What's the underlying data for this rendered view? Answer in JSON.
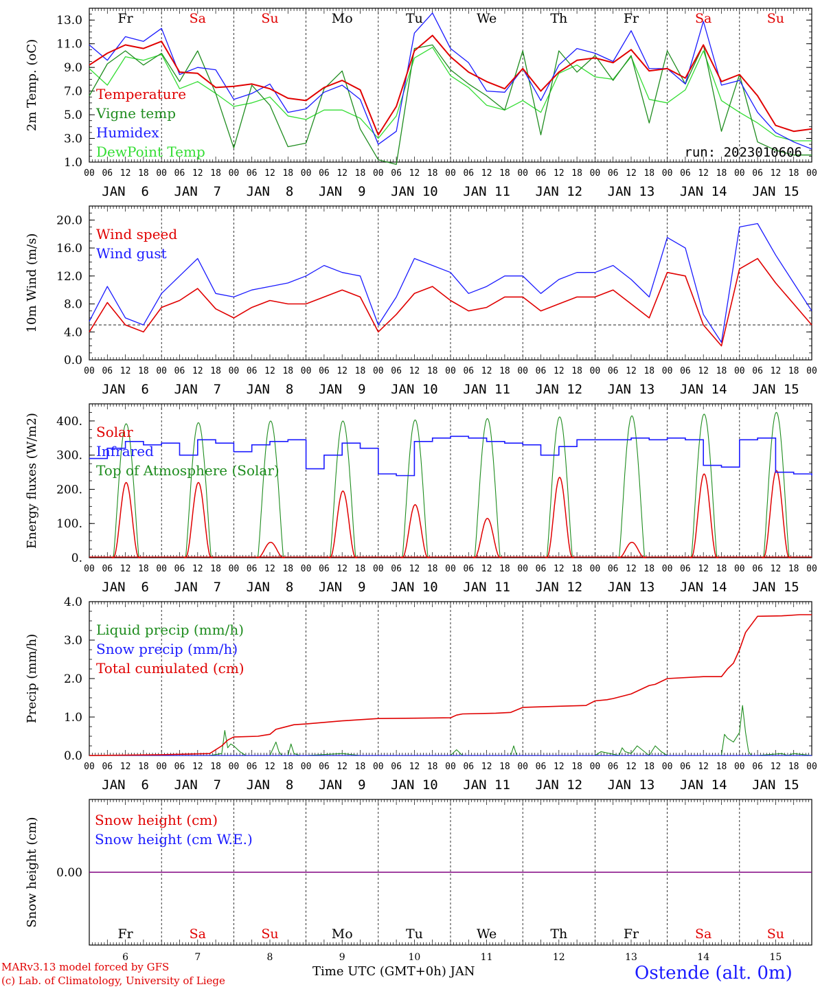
{
  "footer": {
    "credit_line1": "MARv3.13 model forced by GFS",
    "credit_line2": "(c) Lab. of Climatology, University of Liege",
    "x_axis_title": "Time UTC (GMT+0h) JAN",
    "station": "Ostende (alt. 0m)"
  },
  "colors": {
    "red": "#e00000",
    "blue": "#1a1aff",
    "green": "#1e8c1e",
    "lightgreen": "#33dd33",
    "purple": "#800080",
    "black": "#000000"
  },
  "axis": {
    "hour_ticks": [
      "00",
      "06",
      "12",
      "18"
    ],
    "final_tick": "00",
    "date_labels": [
      "JAN  6",
      "JAN  7",
      "JAN  8",
      "JAN  9",
      "JAN 10",
      "JAN 11",
      "JAN 12",
      "JAN 13",
      "JAN 14",
      "JAN 15"
    ],
    "day_names": [
      "Fr",
      "Sa",
      "Su",
      "Mo",
      "Tu",
      "We",
      "Th",
      "Fr",
      "Sa",
      "Su"
    ],
    "weekend": [
      false,
      true,
      true,
      false,
      false,
      false,
      false,
      false,
      true,
      true
    ],
    "day_numbers": [
      "6",
      "7",
      "8",
      "9",
      "10",
      "11",
      "12",
      "13",
      "14",
      "15"
    ]
  },
  "chart_data": [
    {
      "id": "temp",
      "type": "line",
      "ylabel": "2m Temp. (oC)",
      "ylim": [
        1,
        14
      ],
      "yticks": [
        1,
        3,
        5,
        7,
        9,
        11,
        13
      ],
      "ytick_labels": [
        "1.0",
        "3.0",
        "5.0",
        "7.0",
        "9.0",
        "11.0",
        "13.0"
      ],
      "annotation": "run: 2023010606",
      "x_hours": [
        0,
        6,
        12,
        18,
        24,
        30,
        36,
        42,
        48,
        54,
        60,
        66,
        72,
        78,
        84,
        90,
        96,
        102,
        108,
        114,
        120,
        126,
        132,
        138,
        144,
        150,
        156,
        162,
        168,
        174,
        180,
        186,
        192,
        198,
        204,
        210,
        216,
        222,
        228,
        234,
        240
      ],
      "series": [
        {
          "name": "Temperature",
          "color": "red",
          "values": [
            9.2,
            10.2,
            10.9,
            10.6,
            11.2,
            8.6,
            8.5,
            7.3,
            7.4,
            7.6,
            7.2,
            6.4,
            6.2,
            7.3,
            7.9,
            7.1,
            3.3,
            5.7,
            10.4,
            11.7,
            9.9,
            8.6,
            7.8,
            7.2,
            8.9,
            7.0,
            8.6,
            9.6,
            9.8,
            9.4,
            10.5,
            8.7,
            8.9,
            8.1,
            10.9,
            7.8,
            8.4,
            6.6,
            4.1,
            3.6,
            3.8
          ]
        },
        {
          "name": "Vigne temp",
          "color": "green",
          "values": [
            6.6,
            9.3,
            10.4,
            9.2,
            10.2,
            7.8,
            10.4,
            6.8,
            2.2,
            7.5,
            5.8,
            2.3,
            2.6,
            7.2,
            8.7,
            3.8,
            1.2,
            0.8,
            10.6,
            10.9,
            8.8,
            7.6,
            6.6,
            5.4,
            10.4,
            3.3,
            10.4,
            8.6,
            10.0,
            7.9,
            10.0,
            4.3,
            10.4,
            7.6,
            10.9,
            3.6,
            8.4,
            2.7,
            2.0,
            1.6,
            1.6
          ]
        },
        {
          "name": "Humidex",
          "color": "blue",
          "values": [
            10.9,
            9.6,
            11.6,
            11.2,
            12.3,
            8.4,
            9.0,
            8.8,
            6.3,
            6.8,
            7.6,
            5.2,
            5.5,
            6.9,
            7.5,
            6.3,
            2.5,
            3.6,
            11.9,
            13.6,
            10.6,
            9.4,
            7.0,
            6.9,
            8.9,
            6.2,
            9.2,
            10.6,
            10.2,
            9.5,
            12.1,
            8.9,
            8.9,
            7.6,
            12.9,
            7.5,
            7.9,
            5.2,
            3.5,
            2.7,
            2.1
          ]
        },
        {
          "name": "DewPoint Temp",
          "color": "lightgreen",
          "values": [
            8.9,
            7.5,
            9.9,
            9.6,
            10.1,
            7.2,
            7.8,
            6.8,
            5.7,
            6.0,
            6.5,
            4.9,
            4.6,
            5.4,
            5.4,
            4.7,
            3.0,
            4.9,
            9.8,
            10.7,
            8.3,
            7.3,
            5.8,
            5.4,
            6.2,
            5.2,
            8.5,
            9.2,
            8.2,
            8.0,
            9.9,
            6.3,
            6.0,
            7.1,
            10.4,
            6.2,
            5.2,
            4.3,
            3.2,
            2.8,
            2.8
          ]
        }
      ]
    },
    {
      "id": "wind",
      "type": "line",
      "ylabel": "10m Wind (m/s)",
      "ylim": [
        0,
        22
      ],
      "yticks": [
        0,
        4,
        8,
        12,
        16,
        20
      ],
      "ytick_labels": [
        "0.0",
        "4.0",
        "8.0",
        "12.0",
        "16.0",
        "20.0"
      ],
      "reference_line": 5,
      "x_hours": [
        0,
        6,
        12,
        18,
        24,
        30,
        36,
        42,
        48,
        54,
        60,
        66,
        72,
        78,
        84,
        90,
        96,
        102,
        108,
        114,
        120,
        126,
        132,
        138,
        144,
        150,
        156,
        162,
        168,
        174,
        180,
        186,
        192,
        198,
        204,
        210,
        216,
        222,
        228,
        234,
        240
      ],
      "series": [
        {
          "name": "Wind speed",
          "color": "red",
          "values": [
            4.0,
            8.2,
            5.0,
            4.0,
            7.5,
            8.5,
            10.2,
            7.3,
            6.0,
            7.5,
            8.5,
            8.0,
            8.0,
            9.0,
            10.0,
            9.0,
            4.0,
            6.5,
            9.5,
            10.5,
            8.5,
            7.0,
            7.5,
            9.0,
            9.0,
            7.0,
            8.0,
            9.0,
            9.0,
            10.0,
            8.0,
            6.0,
            12.5,
            12.0,
            5.0,
            2.0,
            13.0,
            14.5,
            11.0,
            8.0,
            5.0
          ]
        },
        {
          "name": "Wind gust",
          "color": "blue",
          "values": [
            5.5,
            10.5,
            6.0,
            5.0,
            9.5,
            12.0,
            14.5,
            9.5,
            9.0,
            10.0,
            10.5,
            11.0,
            12.0,
            13.5,
            12.5,
            12.0,
            5.0,
            9.0,
            14.5,
            13.5,
            12.5,
            9.5,
            10.5,
            12.0,
            12.0,
            9.5,
            11.5,
            12.5,
            12.5,
            13.5,
            11.5,
            9.0,
            17.5,
            16.0,
            6.5,
            2.5,
            19.0,
            19.5,
            15.0,
            11.0,
            7.0
          ]
        }
      ]
    },
    {
      "id": "energy",
      "type": "line",
      "ylabel": "Energy fluxes (W/m2)",
      "ylim": [
        0,
        450
      ],
      "yticks": [
        0,
        100,
        200,
        300,
        400
      ],
      "ytick_labels": [
        "0.",
        "100.",
        "200.",
        "300.",
        "400."
      ],
      "infrared": {
        "name": "Infrared",
        "color": "blue",
        "x_hours": [
          0,
          6,
          12,
          18,
          24,
          30,
          36,
          42,
          48,
          54,
          60,
          66,
          72,
          78,
          84,
          90,
          96,
          102,
          108,
          114,
          120,
          126,
          132,
          138,
          144,
          150,
          156,
          162,
          168,
          174,
          180,
          186,
          192,
          198,
          204,
          210,
          216,
          222,
          228,
          234,
          240
        ],
        "values": [
          290,
          320,
          340,
          330,
          335,
          300,
          345,
          335,
          310,
          330,
          340,
          345,
          260,
          300,
          335,
          320,
          245,
          240,
          340,
          350,
          355,
          350,
          340,
          335,
          330,
          300,
          325,
          345,
          345,
          345,
          350,
          345,
          350,
          345,
          270,
          265,
          345,
          350,
          250,
          245,
          240
        ]
      },
      "solar_days": {
        "solar_name": "Solar",
        "solar_color": "red",
        "toa_name": "Top of Atmosphere (Solar)",
        "toa_color": "green",
        "toa_peaks": [
          392,
          395,
          400,
          400,
          403,
          407,
          412,
          415,
          420,
          425
        ],
        "solar_peaks": [
          220,
          220,
          45,
          195,
          155,
          115,
          235,
          45,
          245,
          255
        ],
        "sunrise_hour": 8,
        "sunset_hour": 16.5
      }
    },
    {
      "id": "precip",
      "type": "line",
      "ylabel": "Precip (mm/h)",
      "ylim": [
        0,
        4
      ],
      "yticks": [
        0,
        1,
        2,
        3,
        4
      ],
      "ytick_labels": [
        "0.0",
        "1.0",
        "2.0",
        "3.0",
        "4.0"
      ],
      "series": [
        {
          "name": "Liquid precip (mm/h)",
          "color": "green",
          "x_hours": [
            0,
            40,
            44,
            45,
            46,
            47,
            48,
            50,
            52,
            60,
            62,
            63,
            64,
            66,
            67,
            68,
            70,
            72,
            84,
            90,
            96,
            120,
            122,
            124,
            140,
            141,
            142,
            168,
            170,
            176,
            177,
            178,
            180,
            182,
            186,
            188,
            190,
            192,
            210,
            211,
            212,
            214,
            216,
            217,
            218,
            219,
            220,
            222,
            230,
            232,
            234,
            240
          ],
          "values": [
            0,
            0,
            0.05,
            0.65,
            0.2,
            0.3,
            0.25,
            0.1,
            0,
            0,
            0.35,
            0.1,
            0,
            0,
            0.3,
            0.05,
            0,
            0,
            0.05,
            0,
            0,
            0,
            0.15,
            0,
            0,
            0.25,
            0,
            0,
            0.1,
            0,
            0.2,
            0.1,
            0.05,
            0.25,
            0,
            0.25,
            0.1,
            0,
            0,
            0.55,
            0.45,
            0.35,
            0.6,
            1.3,
            0.6,
            0.1,
            0,
            0,
            0.05,
            0,
            0.05,
            0
          ]
        },
        {
          "name": "Snow precip (mm/h)",
          "color": "blue",
          "x_hours": [
            0,
            240
          ],
          "values": [
            0,
            0
          ]
        },
        {
          "name": "Total cumulated (cm)",
          "color": "red",
          "x_hours": [
            0,
            24,
            40,
            44,
            46,
            48,
            56,
            60,
            62,
            64,
            68,
            72,
            84,
            96,
            108,
            120,
            122,
            124,
            135,
            140,
            144,
            156,
            165,
            168,
            172,
            174,
            180,
            186,
            188,
            192,
            204,
            210,
            212,
            214,
            216,
            218,
            222,
            230,
            236,
            240
          ],
          "values": [
            0,
            0.02,
            0.05,
            0.25,
            0.4,
            0.48,
            0.5,
            0.55,
            0.68,
            0.72,
            0.8,
            0.82,
            0.9,
            0.96,
            0.97,
            0.98,
            1.05,
            1.08,
            1.1,
            1.12,
            1.25,
            1.28,
            1.3,
            1.42,
            1.45,
            1.48,
            1.6,
            1.82,
            1.85,
            2.0,
            2.05,
            2.05,
            2.25,
            2.4,
            2.75,
            3.2,
            3.62,
            3.63,
            3.66,
            3.66
          ]
        }
      ]
    },
    {
      "id": "snow",
      "type": "line",
      "ylabel": "Snow height (cm)",
      "ylim": [
        -1,
        1
      ],
      "yticks": [
        0
      ],
      "ytick_labels": [
        "0.00"
      ],
      "series": [
        {
          "name": "Snow height (cm)",
          "color": "red",
          "x_hours": [
            0,
            240
          ],
          "values": [
            0,
            0
          ]
        },
        {
          "name": "Snow height (cm W.E.)",
          "color": "blue",
          "x_hours": [
            0,
            240
          ],
          "values": [
            0,
            0
          ]
        }
      ],
      "line_color": "purple"
    }
  ]
}
